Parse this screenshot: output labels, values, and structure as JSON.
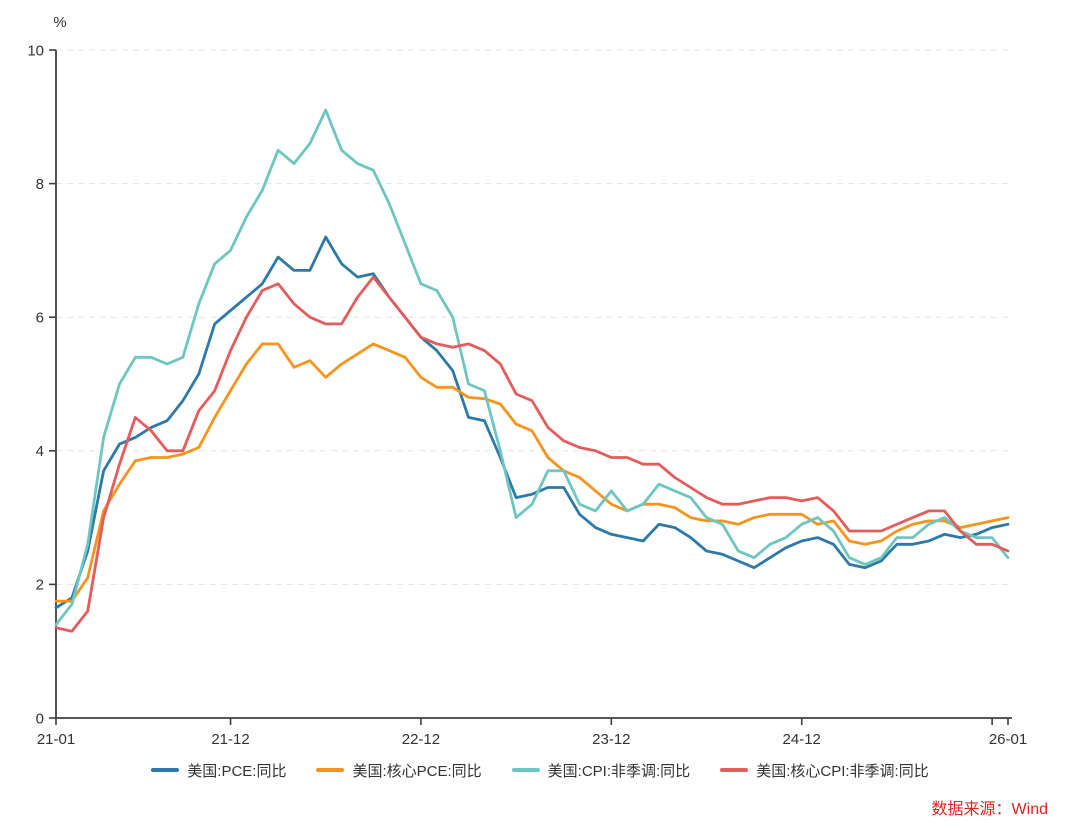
{
  "chart": {
    "unit_label": "%",
    "source_note": "数据来源：Wind",
    "source_color": "#e02420",
    "axis_color": "#404040",
    "grid_color": "#e3e3e3",
    "text_color": "#333333"
  },
  "chart_data": {
    "type": "line",
    "title": "",
    "xlabel": "",
    "ylabel": "%",
    "ylim": [
      0,
      10
    ],
    "yticks": [
      0,
      2,
      4,
      6,
      8,
      10
    ],
    "grid": "horizontal-dashed",
    "legend_position": "bottom-center",
    "x_start": "2021-01",
    "x_end": "2026-01",
    "x_months_total": 60,
    "xticks": [
      {
        "label": "21-01",
        "month": 0
      },
      {
        "label": "21-12",
        "month": 11
      },
      {
        "label": "22-12",
        "month": 23
      },
      {
        "label": "23-12",
        "month": 35
      },
      {
        "label": "24-12",
        "month": 47
      },
      {
        "label": "",
        "month": 59
      },
      {
        "label": "26-01",
        "month": 60
      }
    ],
    "series": [
      {
        "id": "pce",
        "name": "美国:PCE:同比",
        "color": "#2d79a7",
        "values": [
          1.65,
          1.8,
          2.5,
          3.7,
          4.1,
          4.2,
          4.35,
          4.45,
          4.75,
          5.15,
          5.9,
          6.1,
          6.3,
          6.5,
          6.9,
          6.7,
          6.7,
          7.2,
          6.8,
          6.6,
          6.65,
          6.3,
          6.0,
          5.7,
          5.5,
          5.2,
          4.5,
          4.45,
          3.9,
          3.3,
          3.35,
          3.45,
          3.45,
          3.05,
          2.85,
          2.75,
          2.7,
          2.65,
          2.9,
          2.85,
          2.7,
          2.5,
          2.45,
          2.35,
          2.25,
          2.4,
          2.55,
          2.65,
          2.7,
          2.6,
          2.3,
          2.25,
          2.35,
          2.6,
          2.6,
          2.65,
          2.75,
          2.7,
          2.75,
          2.85,
          2.9
        ]
      },
      {
        "id": "core_pce",
        "name": "美国:核心PCE:同比",
        "color": "#f8941d",
        "values": [
          1.75,
          1.75,
          2.1,
          3.1,
          3.5,
          3.85,
          3.9,
          3.9,
          3.95,
          4.05,
          4.5,
          4.9,
          5.3,
          5.6,
          5.6,
          5.25,
          5.35,
          5.1,
          5.3,
          5.45,
          5.6,
          5.5,
          5.4,
          5.1,
          4.95,
          4.95,
          4.8,
          4.78,
          4.7,
          4.4,
          4.3,
          3.9,
          3.7,
          3.6,
          3.4,
          3.2,
          3.1,
          3.2,
          3.2,
          3.15,
          3.0,
          2.95,
          2.95,
          2.9,
          3.0,
          3.05,
          3.05,
          3.05,
          2.9,
          2.95,
          2.65,
          2.6,
          2.65,
          2.8,
          2.9,
          2.95,
          2.95,
          2.85,
          2.9,
          2.95,
          3.0
        ]
      },
      {
        "id": "cpi",
        "name": "美国:CPI:非季调:同比",
        "color": "#6ec6c1",
        "values": [
          1.4,
          1.7,
          2.6,
          4.2,
          5.0,
          5.4,
          5.4,
          5.3,
          5.4,
          6.2,
          6.8,
          7.0,
          7.5,
          7.9,
          8.5,
          8.3,
          8.6,
          9.1,
          8.5,
          8.3,
          8.2,
          7.7,
          7.1,
          6.5,
          6.4,
          6.0,
          5.0,
          4.9,
          4.0,
          3.0,
          3.2,
          3.7,
          3.7,
          3.2,
          3.1,
          3.4,
          3.1,
          3.2,
          3.5,
          3.4,
          3.3,
          3.0,
          2.9,
          2.5,
          2.4,
          2.6,
          2.7,
          2.9,
          3.0,
          2.8,
          2.4,
          2.3,
          2.4,
          2.7,
          2.7,
          2.9,
          3.0,
          2.8,
          2.7,
          2.7,
          2.4
        ]
      },
      {
        "id": "core_cpi",
        "name": "美国:核心CPI:非季调:同比",
        "color": "#e45c5b",
        "values": [
          1.35,
          1.3,
          1.6,
          3.0,
          3.8,
          4.5,
          4.3,
          4.0,
          4.0,
          4.6,
          4.9,
          5.5,
          6.0,
          6.4,
          6.5,
          6.2,
          6.0,
          5.9,
          5.9,
          6.3,
          6.6,
          6.3,
          6.0,
          5.7,
          5.6,
          5.55,
          5.6,
          5.5,
          5.3,
          4.85,
          4.75,
          4.35,
          4.15,
          4.05,
          4.0,
          3.9,
          3.9,
          3.8,
          3.8,
          3.6,
          3.45,
          3.3,
          3.2,
          3.2,
          3.25,
          3.3,
          3.3,
          3.25,
          3.3,
          3.1,
          2.8,
          2.8,
          2.8,
          2.9,
          3.0,
          3.1,
          3.1,
          2.8,
          2.6,
          2.6,
          2.5
        ]
      }
    ]
  }
}
